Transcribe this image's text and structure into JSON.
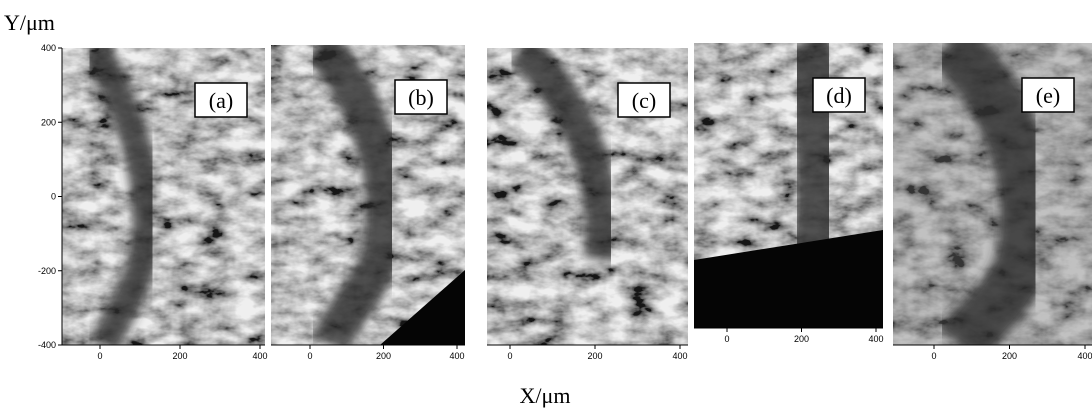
{
  "y_axis": {
    "label": "Y/μm",
    "ticks": [
      400,
      200,
      0,
      -200,
      -400
    ]
  },
  "x_axis": {
    "label": "X/μm"
  },
  "panels": [
    {
      "label": "(a)",
      "xticks": [
        0,
        200,
        400
      ]
    },
    {
      "label": "(b)",
      "xticks": [
        0,
        200,
        400
      ]
    },
    {
      "label": "(c)",
      "xticks": [
        0,
        200,
        400
      ]
    },
    {
      "label": "(d)",
      "xticks": [
        0,
        200,
        400
      ]
    },
    {
      "label": "(e)",
      "xticks": [
        0,
        200,
        400
      ]
    }
  ]
}
